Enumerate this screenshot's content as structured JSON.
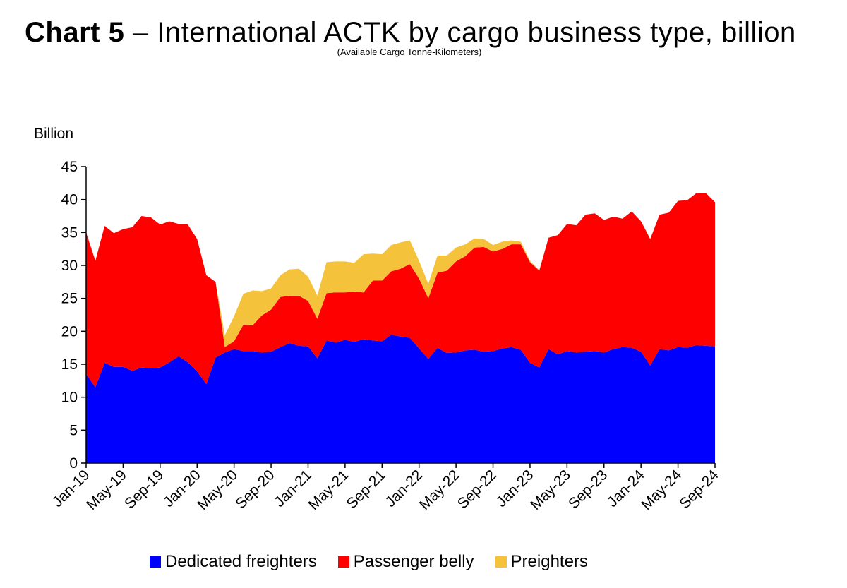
{
  "header": {
    "title_bold": "Chart 5",
    "title_rest": " – International ACTK by cargo business type, billion",
    "subtitle": "(Available Cargo Tonne-Kilometers)"
  },
  "chart_data": {
    "type": "area",
    "stacked": true,
    "title": "Chart 5 – International ACTK by cargo business type, billion",
    "subtitle": "(Available Cargo Tonne-Kilometers)",
    "ylabel": "Billion",
    "ylim": [
      0,
      45
    ],
    "yticks": [
      0,
      5,
      10,
      15,
      20,
      25,
      30,
      35,
      40,
      45
    ],
    "xtick_labels": [
      "Jan-19",
      "May-19",
      "Sep-19",
      "Jan-20",
      "May-20",
      "Sep-20",
      "Jan-21",
      "May-21",
      "Sep-21",
      "Jan-22",
      "May-22",
      "Sep-22",
      "Jan-23",
      "May-23",
      "Sep-23",
      "Jan-24",
      "May-24",
      "Sep-24"
    ],
    "x": [
      "Jan-19",
      "Feb-19",
      "Mar-19",
      "Apr-19",
      "May-19",
      "Jun-19",
      "Jul-19",
      "Aug-19",
      "Sep-19",
      "Oct-19",
      "Nov-19",
      "Dec-19",
      "Jan-20",
      "Feb-20",
      "Mar-20",
      "Apr-20",
      "May-20",
      "Jun-20",
      "Jul-20",
      "Aug-20",
      "Sep-20",
      "Oct-20",
      "Nov-20",
      "Dec-20",
      "Jan-21",
      "Feb-21",
      "Mar-21",
      "Apr-21",
      "May-21",
      "Jun-21",
      "Jul-21",
      "Aug-21",
      "Sep-21",
      "Oct-21",
      "Nov-21",
      "Dec-21",
      "Jan-22",
      "Feb-22",
      "Mar-22",
      "Apr-22",
      "May-22",
      "Jun-22",
      "Jul-22",
      "Aug-22",
      "Sep-22",
      "Oct-22",
      "Nov-22",
      "Dec-22",
      "Jan-23",
      "Feb-23",
      "Mar-23",
      "Apr-23",
      "May-23",
      "Jun-23",
      "Jul-23",
      "Aug-23",
      "Sep-23",
      "Oct-23",
      "Nov-23",
      "Dec-23",
      "Jan-24",
      "Feb-24",
      "Mar-24",
      "Apr-24",
      "May-24",
      "Jun-24",
      "Jul-24",
      "Aug-24",
      "Sep-24"
    ],
    "series": [
      {
        "name": "Dedicated freighters",
        "color": "#0000ff",
        "values": [
          13.5,
          11.5,
          15.2,
          14.6,
          14.6,
          14.0,
          14.5,
          14.4,
          14.5,
          15.3,
          16.2,
          15.3,
          13.9,
          12.0,
          16.0,
          16.8,
          17.3,
          17.0,
          17.0,
          16.8,
          16.9,
          17.6,
          18.2,
          17.8,
          17.7,
          15.9,
          18.6,
          18.3,
          18.7,
          18.4,
          18.8,
          18.6,
          18.5,
          19.5,
          19.2,
          19.0,
          17.4,
          15.8,
          17.5,
          16.7,
          16.8,
          17.1,
          17.2,
          16.9,
          17.0,
          17.4,
          17.6,
          17.2,
          15.2,
          14.5,
          17.3,
          16.5,
          17.0,
          16.8,
          16.9,
          17.0,
          16.8,
          17.3,
          17.6,
          17.5,
          16.9,
          14.8,
          17.3,
          17.1,
          17.6,
          17.5,
          17.9,
          17.8,
          17.7
        ]
      },
      {
        "name": "Passenger belly",
        "color": "#ff0000",
        "values": [
          21.5,
          19.2,
          20.8,
          20.3,
          20.9,
          21.8,
          23.0,
          22.9,
          21.7,
          21.4,
          20.1,
          20.9,
          20.1,
          16.5,
          11.5,
          0.8,
          1.2,
          4.0,
          3.9,
          5.6,
          6.4,
          7.6,
          7.2,
          7.6,
          6.9,
          6.0,
          7.2,
          7.6,
          7.2,
          7.6,
          7.1,
          9.1,
          9.2,
          9.6,
          10.3,
          11.2,
          10.6,
          9.2,
          11.4,
          12.5,
          13.8,
          14.3,
          15.5,
          15.9,
          15.1,
          15.1,
          15.6,
          16.0,
          15.3,
          14.7,
          16.9,
          18.1,
          19.3,
          19.3,
          20.8,
          20.9,
          20.1,
          20.1,
          19.5,
          20.7,
          19.8,
          19.2,
          20.4,
          20.9,
          22.2,
          22.4,
          23.1,
          23.2,
          21.9
        ]
      },
      {
        "name": "Preighters",
        "color": "#f5c23c",
        "values": [
          0,
          0,
          0,
          0,
          0,
          0,
          0,
          0,
          0,
          0,
          0,
          0,
          0,
          0,
          0,
          1.8,
          3.8,
          4.7,
          5.3,
          3.7,
          3.2,
          3.3,
          4.0,
          4.1,
          3.7,
          3.5,
          4.7,
          4.7,
          4.7,
          4.4,
          5.8,
          4.1,
          4.0,
          4.0,
          4.0,
          3.6,
          2.7,
          2.2,
          2.6,
          2.3,
          2.1,
          1.8,
          1.4,
          1.2,
          1.0,
          1.1,
          0.6,
          0.4,
          0.2,
          0.1,
          0,
          0,
          0,
          0,
          0,
          0,
          0,
          0,
          0,
          0,
          0,
          0,
          0,
          0,
          0,
          0,
          0,
          0,
          0
        ]
      }
    ],
    "legend_position": "bottom",
    "grid": false
  }
}
